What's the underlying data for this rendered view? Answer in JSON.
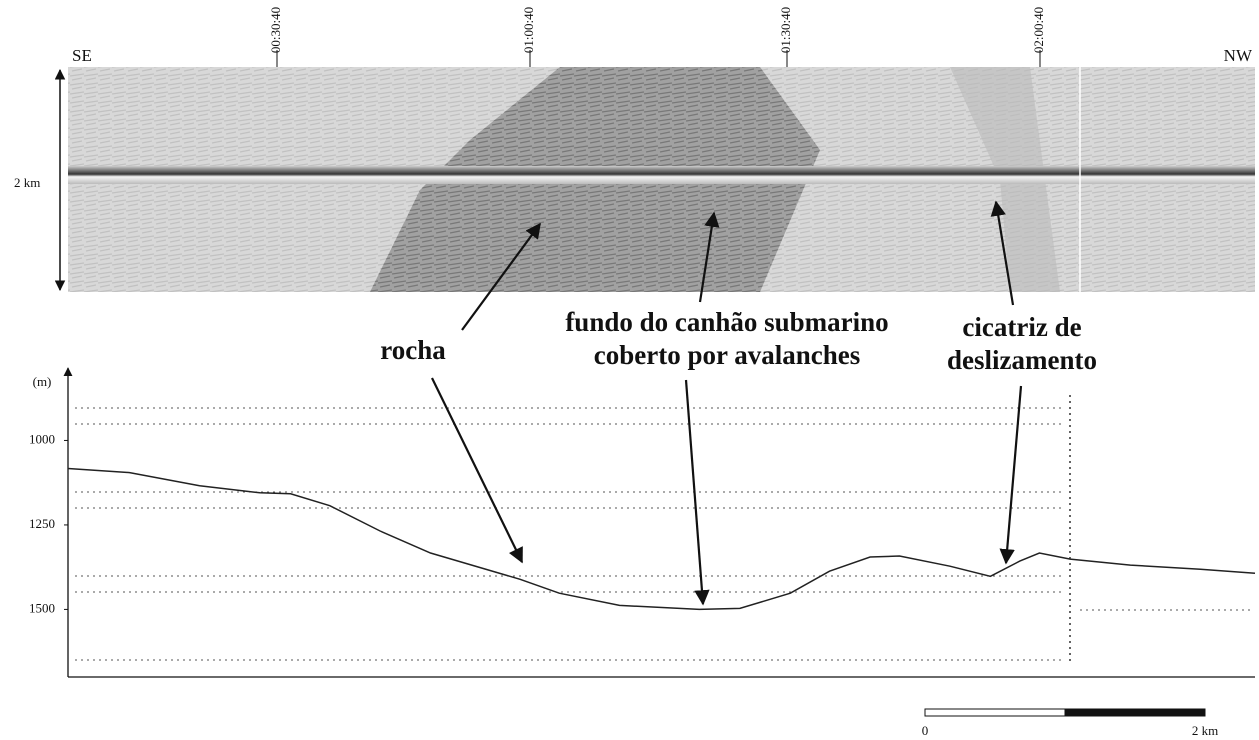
{
  "sonar": {
    "left_label": "SE",
    "right_label": "NW",
    "width_label": "2 km",
    "time_labels": [
      "00:30:40",
      "01:00:40",
      "01:30:40",
      "02:00:40"
    ]
  },
  "annotations": [
    {
      "lines": [
        "rocha"
      ]
    },
    {
      "lines": [
        "fundo do canhão submarino",
        "coberto por avalanches"
      ]
    },
    {
      "lines": [
        "cicatriz de",
        "deslizamento"
      ]
    }
  ],
  "chart_data": {
    "type": "line",
    "y_label": "(m)",
    "x": [
      0,
      0.44,
      0.94,
      1.37,
      1.59,
      1.87,
      2.23,
      2.59,
      3.23,
      3.51,
      3.94,
      4.51,
      4.8,
      5.16,
      5.44,
      5.73,
      5.94,
      6.3,
      6.59,
      6.8,
      6.94,
      7.16,
      7.59,
      8.09,
      8.48
    ],
    "values": [
      1083,
      1095,
      1134,
      1155,
      1158,
      1193,
      1268,
      1333,
      1411,
      1452,
      1488,
      1500,
      1497,
      1452,
      1387,
      1345,
      1342,
      1372,
      1402,
      1357,
      1333,
      1351,
      1369,
      1381,
      1393
    ],
    "color": "#222",
    "xlim": [
      0,
      8.48
    ],
    "ylim": [
      1700,
      830
    ],
    "yticks": [
      1000,
      1250,
      1500
    ],
    "scale_bar": {
      "start_label": "0",
      "end_label": "2 km",
      "length": 2
    }
  }
}
